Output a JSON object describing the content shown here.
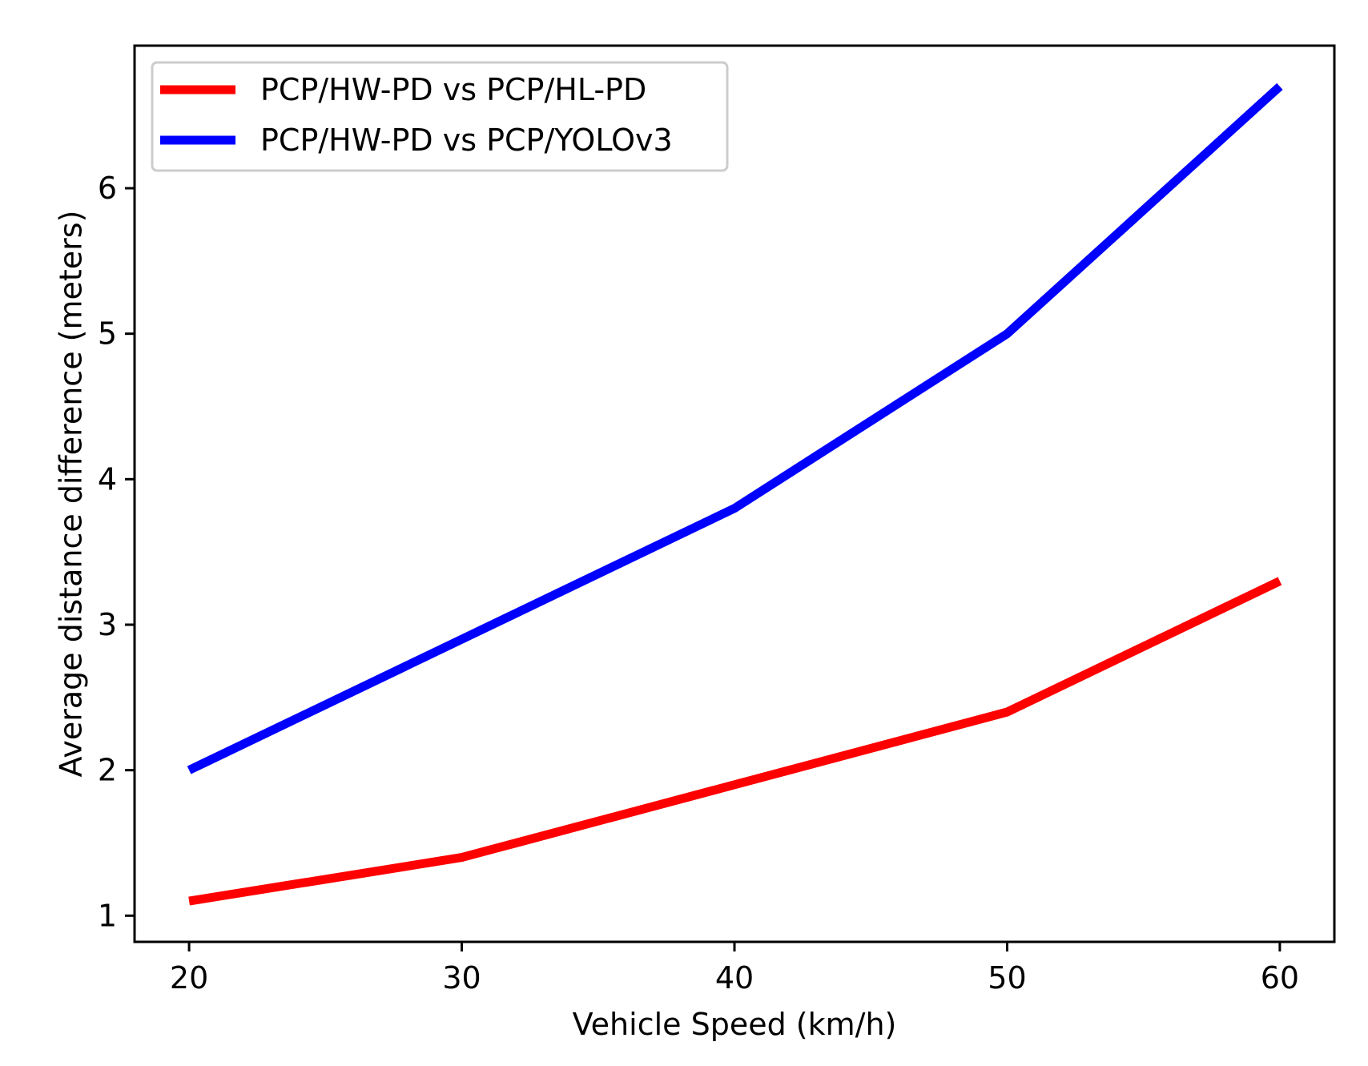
{
  "chart_data": {
    "type": "line",
    "title": "",
    "xlabel": "Vehicle Speed (km/h)",
    "ylabel": "Average distance difference (meters)",
    "x": [
      20,
      30,
      40,
      50,
      60
    ],
    "xlim": [
      18,
      62
    ],
    "ylim": [
      0.82,
      6.98
    ],
    "xticks": [
      20,
      30,
      40,
      50,
      60
    ],
    "yticks": [
      1,
      2,
      3,
      4,
      5,
      6
    ],
    "xtick_labels": [
      "20",
      "30",
      "40",
      "50",
      "60"
    ],
    "ytick_labels": [
      "1",
      "2",
      "3",
      "4",
      "5",
      "6"
    ],
    "grid": false,
    "legend_position": "top-left",
    "series": [
      {
        "name": "PCP/HW-PD vs PCP/HL-PD",
        "color": "#ff0000",
        "values": [
          1.1,
          1.4,
          1.9,
          2.4,
          3.3
        ]
      },
      {
        "name": "PCP/HW-PD vs PCP/YOLOv3",
        "color": "#0000ff",
        "values": [
          2.0,
          2.9,
          3.8,
          5.0,
          6.7
        ]
      }
    ]
  }
}
